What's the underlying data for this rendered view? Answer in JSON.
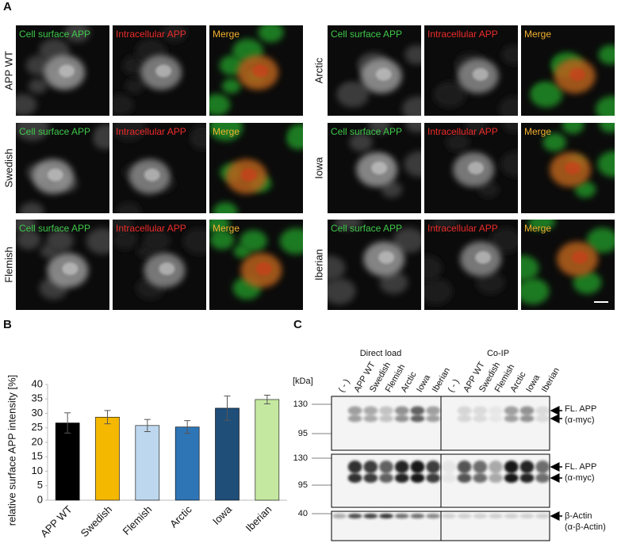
{
  "panel_labels": [
    "A",
    "B",
    "C"
  ],
  "microscopy": {
    "channels": [
      "Cell surface APP",
      "Intracellular APP",
      "Merge"
    ],
    "channel_colors": [
      "#3ec84a",
      "#ee2b2b",
      "#f2b030"
    ],
    "rows": [
      "APP WT",
      "Swedish",
      "Flemish",
      "Arctic",
      "Iowa",
      "Iberian"
    ]
  },
  "chart_data": {
    "type": "bar",
    "y_label": "relative surface APP intensity [%]",
    "categories": [
      "APP WT",
      "Swedish",
      "Flemish",
      "Arctic",
      "Iowa",
      "Iberian"
    ],
    "values": [
      26.7,
      28.7,
      25.8,
      25.3,
      31.8,
      34.8
    ],
    "errors": [
      3.5,
      2.3,
      2.1,
      2.2,
      4.2,
      1.5
    ],
    "colors": [
      "#000000",
      "#f5b800",
      "#bdd7ee",
      "#2e75b6",
      "#1f4e79",
      "#c5e8a0"
    ],
    "ylim": [
      0,
      40
    ],
    "yticks": [
      0,
      5,
      10,
      15,
      20,
      25,
      30,
      35,
      40
    ],
    "grid": false
  },
  "blot": {
    "groups": [
      "Direct load",
      "Co-IP"
    ],
    "unit": "[kDa]",
    "lanes": [
      [
        "( - )",
        "APP WT",
        "Swedish",
        "Flemish",
        "Arctic",
        "Iowa",
        "Iberian"
      ],
      [
        "( - )",
        "APP WT",
        "Swedish",
        "Flemish",
        "Arctic",
        "Iowa",
        "Iberian"
      ]
    ],
    "blots": [
      {
        "markers": [
          130,
          95
        ],
        "labels": [
          "FL. APP",
          "(α-myc)"
        ]
      },
      {
        "markers": [
          130,
          95
        ],
        "labels": [
          "FL. APP",
          "(α-myc)"
        ]
      },
      {
        "markers": [
          40
        ],
        "labels": [
          "β-Actin",
          "(α-β-Actin)"
        ]
      }
    ]
  }
}
